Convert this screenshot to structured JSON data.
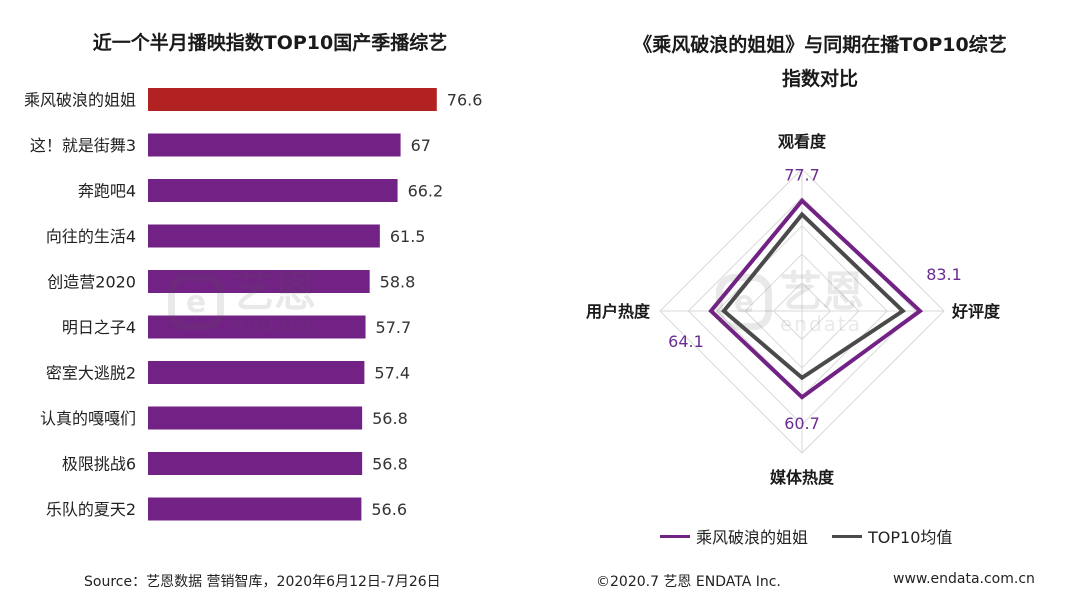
{
  "left_title": "近一个半月播映指数TOP10国产季播综艺",
  "right_title_line1": "《乘风破浪的姐姐》与同期在播TOP10综艺",
  "right_title_line2": "指数对比",
  "watermark": {
    "cn": "艺恩",
    "en": "endata"
  },
  "colors": {
    "highlight": "#b22222",
    "bar": "#722284",
    "radar_primary": "#722284",
    "radar_avg": "#4a4a4a",
    "grid": "#d9d9d9"
  },
  "legend": {
    "primary": "乘风破浪的姐姐",
    "average": "TOP10均值"
  },
  "footer": {
    "source": "Source：艺恩数据 营销智库，2020年6月12日-7月26日",
    "copyright": "©2020.7 艺恩 ENDATA Inc.",
    "url": "www.endata.com.cn"
  },
  "chart_data": [
    {
      "type": "bar",
      "orientation": "horizontal",
      "title": "近一个半月播映指数TOP10国产季播综艺",
      "categories": [
        "乘风破浪的姐姐",
        "这！就是街舞3",
        "奔跑吧4",
        "向往的生活4",
        "创造营2020",
        "明日之子4",
        "密室大逃脱2",
        "认真的嘎嘎们",
        "极限挑战6",
        "乐队的夏天2"
      ],
      "values": [
        76.6,
        67,
        66.2,
        61.5,
        58.8,
        57.7,
        57.4,
        56.8,
        56.8,
        56.6
      ],
      "value_labels": [
        "76.6",
        "67",
        "66.2",
        "61.5",
        "58.8",
        "57.7",
        "57.4",
        "56.8",
        "56.8",
        "56.6"
      ],
      "highlight_index": 0,
      "xlim": [
        0,
        90
      ]
    },
    {
      "type": "radar",
      "title": "《乘风破浪的姐姐》与同期在播TOP10综艺指数对比",
      "axes": [
        "观看度",
        "好评度",
        "媒体热度",
        "用户热度"
      ],
      "range": [
        0,
        100
      ],
      "series": [
        {
          "name": "乘风破浪的姐姐",
          "values": [
            77.7,
            83.1,
            60.7,
            64.1
          ],
          "labels": [
            "77.7",
            "83.1",
            "60.7",
            "64.1"
          ]
        },
        {
          "name": "TOP10均值",
          "values": [
            68,
            71,
            47,
            55
          ]
        }
      ]
    }
  ]
}
